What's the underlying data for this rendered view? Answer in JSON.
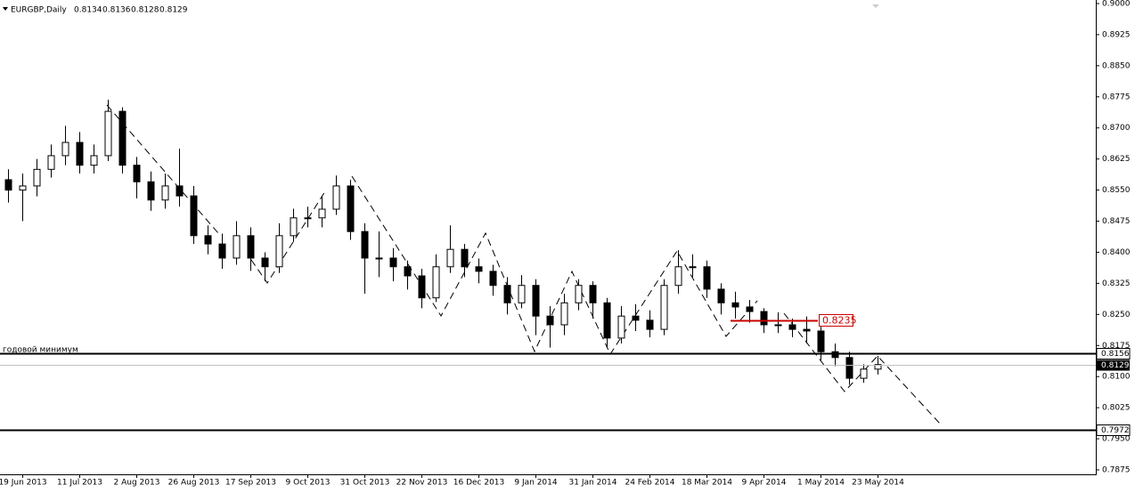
{
  "chart_data": {
    "type": "candlestick",
    "header": {
      "symbol": "EURGBP,Daily",
      "ohlc": [
        0.8134,
        0.8136,
        0.8128,
        0.8129
      ]
    },
    "annotation": "годовой минимум",
    "ylim": [
      0.7875,
      0.9
    ],
    "yticks": [
      {
        "value": 0.9,
        "label": "0.9000"
      },
      0.8925,
      {
        "value": 0.885,
        "label": "0.8850"
      },
      0.8775,
      {
        "value": 0.87,
        "label": "0.8700"
      },
      0.8625,
      {
        "value": 0.855,
        "label": "0.8550"
      },
      0.8475,
      {
        "value": 0.84,
        "label": "0.8400"
      },
      0.8325,
      {
        "value": 0.825,
        "label": "0.8250"
      },
      0.8175,
      {
        "value": 0.81,
        "label": "0.8100"
      },
      0.8025,
      {
        "value": 0.795,
        "label": "0.7950"
      },
      0.7875
    ],
    "levels": [
      {
        "value": 0.8156,
        "color": "#000000"
      },
      {
        "value": 0.7972,
        "color": "#000000"
      }
    ],
    "current_price": 0.8129,
    "red_level": {
      "value": 0.8235,
      "color": "#cc0000"
    },
    "categories": [
      null,
      "19 Jun 2013",
      null,
      null,
      null,
      "11 Jul 2013",
      null,
      null,
      null,
      "2 Aug 2013",
      null,
      null,
      null,
      "26 Aug 2013",
      null,
      null,
      null,
      "17 Sep 2013",
      null,
      null,
      null,
      "9 Oct 2013",
      null,
      null,
      null,
      "31 Oct 2013",
      null,
      null,
      null,
      "22 Nov 2013",
      null,
      null,
      null,
      "16 Dec 2013",
      null,
      null,
      null,
      "9 Jan 2014",
      null,
      null,
      null,
      "31 Jan 2014",
      null,
      null,
      null,
      "24 Feb 2014",
      null,
      null,
      null,
      "18 Mar 2014",
      null,
      null,
      null,
      "9 Apr 2014",
      null,
      null,
      null,
      "1 May 2014",
      null,
      null,
      null,
      "23 May 2014"
    ],
    "open": [
      0.8575,
      0.855,
      0.856,
      0.86,
      0.8633,
      0.8665,
      0.861,
      0.8633,
      0.874,
      0.861,
      0.857,
      0.8526,
      0.856,
      0.8536,
      0.844,
      0.842,
      0.8386,
      0.844,
      0.8386,
      0.8365,
      0.844,
      0.8483,
      0.8483,
      0.8504,
      0.856,
      0.845,
      0.8386,
      0.8386,
      0.8365,
      0.8343,
      0.829,
      0.8365,
      0.8407,
      0.8365,
      0.8354,
      0.832,
      0.8278,
      0.832,
      0.8246,
      0.8225,
      0.8278,
      0.832,
      0.8278,
      0.8193,
      0.8246,
      0.8236,
      0.8214,
      0.832,
      0.8365,
      0.8365,
      0.8311,
      0.8278,
      0.8268,
      0.8257,
      0.8225,
      0.8225,
      0.8214,
      0.821,
      0.816,
      0.8146,
      0.8096,
      0.8118
    ],
    "high": [
      0.86,
      0.859,
      0.8625,
      0.866,
      0.8705,
      0.869,
      0.866,
      0.8768,
      0.875,
      0.863,
      0.8595,
      0.859,
      0.865,
      0.856,
      0.8465,
      0.8445,
      0.8475,
      0.846,
      0.84,
      0.847,
      0.8505,
      0.851,
      0.8535,
      0.8585,
      0.8575,
      0.847,
      0.845,
      0.841,
      0.838,
      0.836,
      0.8395,
      0.8465,
      0.842,
      0.8385,
      0.837,
      0.834,
      0.8345,
      0.8335,
      0.827,
      0.83,
      0.8335,
      0.833,
      0.829,
      0.827,
      0.8275,
      0.826,
      0.8335,
      0.8405,
      0.8395,
      0.838,
      0.8325,
      0.8305,
      0.8285,
      0.8265,
      0.8255,
      0.824,
      0.8245,
      0.822,
      0.818,
      0.816,
      0.813,
      0.815
    ],
    "low": [
      0.852,
      0.8475,
      0.8535,
      0.858,
      0.861,
      0.859,
      0.859,
      0.862,
      0.859,
      0.853,
      0.85,
      0.8505,
      0.851,
      0.842,
      0.8395,
      0.836,
      0.837,
      0.8355,
      0.833,
      0.835,
      0.8425,
      0.846,
      0.846,
      0.849,
      0.843,
      0.83,
      0.834,
      0.833,
      0.831,
      0.8265,
      0.828,
      0.835,
      0.834,
      0.8325,
      0.8295,
      0.825,
      0.8265,
      0.82,
      0.817,
      0.82,
      0.826,
      0.824,
      0.817,
      0.818,
      0.821,
      0.8195,
      0.82,
      0.83,
      0.834,
      0.829,
      0.825,
      0.824,
      0.823,
      0.8205,
      0.8205,
      0.8195,
      0.818,
      0.814,
      0.8125,
      0.808,
      0.8085,
      0.8105
    ],
    "close": [
      0.855,
      0.856,
      0.86,
      0.8633,
      0.8665,
      0.861,
      0.8633,
      0.874,
      0.861,
      0.857,
      0.8526,
      0.856,
      0.8536,
      0.844,
      0.842,
      0.8386,
      0.844,
      0.8386,
      0.8365,
      0.844,
      0.8483,
      0.8483,
      0.8504,
      0.856,
      0.845,
      0.8386,
      0.8386,
      0.8365,
      0.8343,
      0.829,
      0.8365,
      0.8407,
      0.8365,
      0.8354,
      0.832,
      0.8278,
      0.832,
      0.8246,
      0.8225,
      0.8278,
      0.832,
      0.8278,
      0.8193,
      0.8246,
      0.8236,
      0.8214,
      0.832,
      0.8365,
      0.8365,
      0.8311,
      0.8278,
      0.8268,
      0.8257,
      0.8225,
      0.8225,
      0.8214,
      0.821,
      0.816,
      0.8146,
      0.8096,
      0.8118,
      0.8129
    ]
  }
}
